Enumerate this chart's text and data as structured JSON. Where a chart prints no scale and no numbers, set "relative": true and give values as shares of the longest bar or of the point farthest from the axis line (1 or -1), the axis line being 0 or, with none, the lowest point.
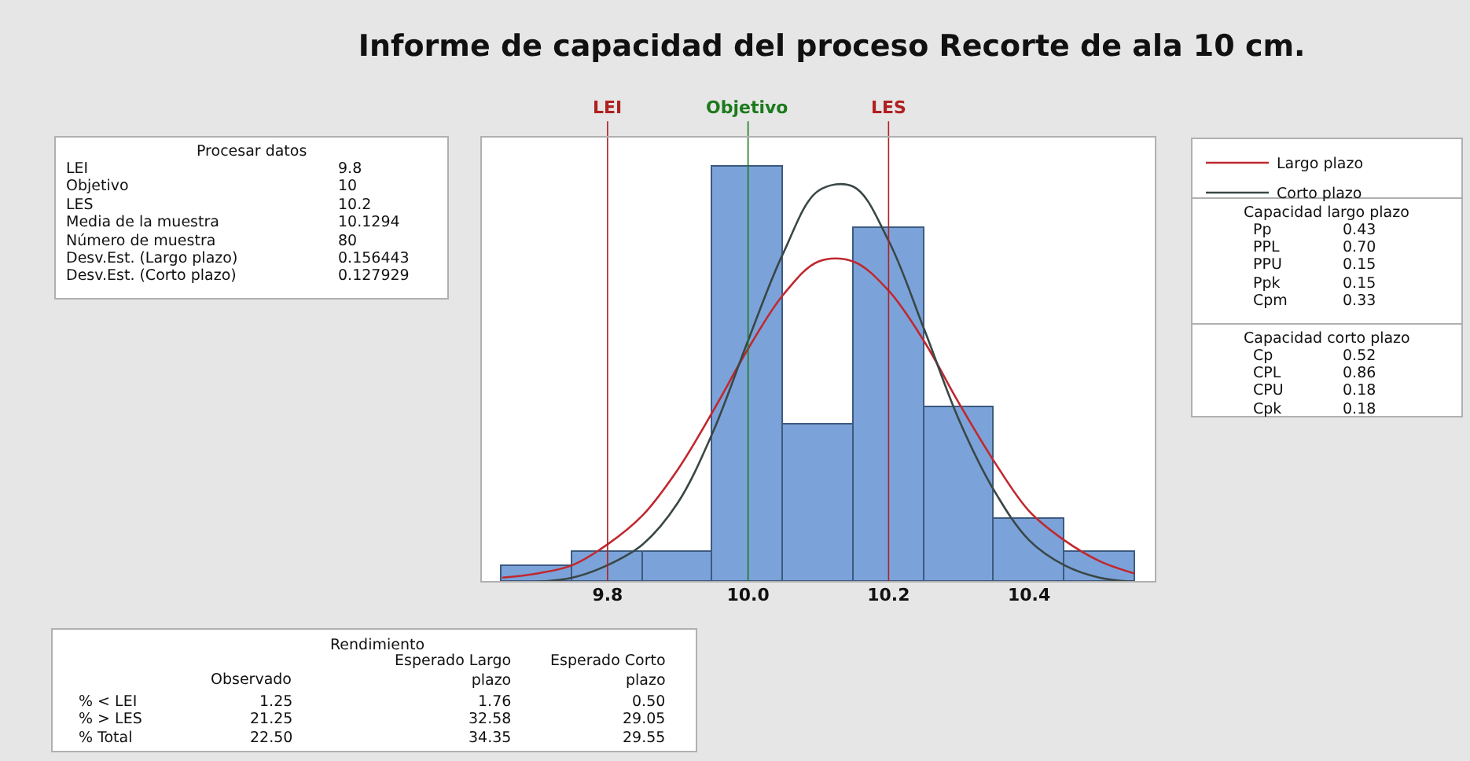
{
  "chart_data": {
    "type": "histogram",
    "title": "Informe de capacidad del proceso Recorte de ala 10 cm.",
    "relative": true,
    "bins": [
      9.65,
      9.75,
      9.85,
      9.95,
      10.05,
      10.15,
      10.25,
      10.35,
      10.45,
      10.55
    ],
    "values": [
      0.036,
      0.073,
      0.073,
      1,
      0.38,
      0.85,
      0.42,
      0.15,
      0.073
    ],
    "color": "#7ba3d9",
    "series": [
      {
        "name": "Largo plazo",
        "type": "line",
        "color": "#c0282f",
        "x": [
          9.65,
          9.7,
          9.75,
          9.8,
          9.85,
          9.9,
          9.95,
          10,
          10.05,
          10.1,
          10.15,
          10.2,
          10.25,
          10.3,
          10.35,
          10.4,
          10.45,
          10.5,
          10.55
        ],
        "values": [
          0.01,
          0.02,
          0.04,
          0.09,
          0.16,
          0.27,
          0.41,
          0.56,
          0.69,
          0.77,
          0.77,
          0.7,
          0.58,
          0.43,
          0.29,
          0.17,
          0.1,
          0.05,
          0.02
        ]
      },
      {
        "name": "Corto plazo",
        "type": "line",
        "color": "#3a4747",
        "x": [
          9.65,
          9.7,
          9.75,
          9.8,
          9.85,
          9.9,
          9.95,
          10,
          10.05,
          10.1,
          10.15,
          10.2,
          10.25,
          10.3,
          10.35,
          10.4,
          10.45,
          10.5,
          10.55
        ],
        "values": [
          0,
          0,
          0.01,
          0.04,
          0.09,
          0.19,
          0.36,
          0.58,
          0.79,
          0.94,
          0.95,
          0.82,
          0.61,
          0.39,
          0.22,
          0.1,
          0.04,
          0.01,
          0
        ]
      }
    ],
    "xlim": [
      9.62,
      10.58
    ],
    "xticks": [
      9.8,
      {
        "value": 10,
        "label": "10.0"
      },
      10.2,
      10.4
    ],
    "ref_lines": [
      {
        "axis": "x",
        "value": 9.8,
        "label": "LEI",
        "color": "#b02020"
      },
      {
        "axis": "x",
        "value": 10,
        "label": "Objetivo",
        "color": "#1c7a1c"
      },
      {
        "axis": "x",
        "value": 10.2,
        "label": "LES",
        "color": "#b02020"
      }
    ],
    "marker": "none",
    "line_style": "solid",
    "legend": "right",
    "grid": false,
    "annotations": [
      "Procesar datos",
      "LEI",
      "9.8",
      "Objetivo",
      "10",
      "LES",
      "10.2",
      "Media de la muestra",
      "10.1294",
      "Número de muestra",
      "80",
      "Desv.Est. (Largo plazo)",
      "0.156443",
      "Desv.Est. (Corto plazo)",
      "0.127929",
      "Capacidad largo plazo",
      "Pp",
      "0.43",
      "PPL",
      "0.70",
      "PPU",
      "0.15",
      "Ppk",
      "0.15",
      "Cpm",
      "0.33",
      "Capacidad corto plazo",
      "Cp",
      "0.52",
      "CPL",
      "0.86",
      "CPU",
      "0.18",
      "Cpk",
      "0.18",
      "Rendimiento",
      "Observado",
      "Esperado Largo plazo",
      "Esperado Corto plazo",
      "% < LEI",
      "1.25",
      "1.76",
      "0.50",
      "% > LES",
      "21.25",
      "32.58",
      "29.05",
      "% Total",
      "22.50",
      "34.35",
      "29.55"
    ]
  }
}
